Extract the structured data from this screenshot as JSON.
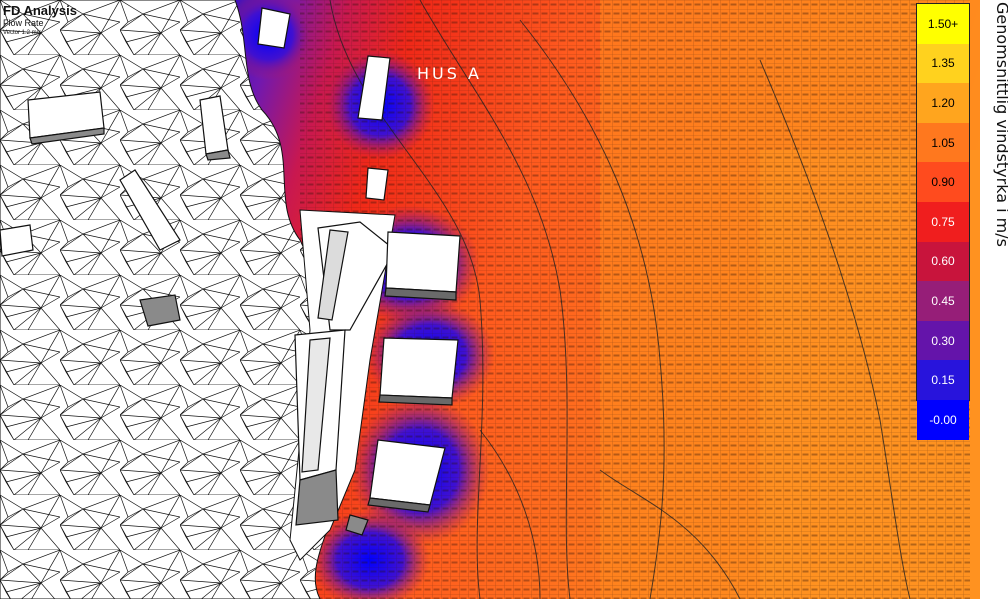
{
  "title": {
    "main": "FD Analysis",
    "sub": "Flow Rate",
    "small": "Vector 1.2 m/s"
  },
  "annotation": {
    "building_label": "HUS  A"
  },
  "legend": {
    "title": "Genomsnittlig vindstyrka i m/s",
    "items": [
      {
        "label": "1.50+",
        "color": "#ffff00",
        "text_color": "#000000"
      },
      {
        "label": "1.35",
        "color": "#ffd21e",
        "text_color": "#000000"
      },
      {
        "label": "1.20",
        "color": "#ffa51e",
        "text_color": "#000000"
      },
      {
        "label": "1.05",
        "color": "#ff781e",
        "text_color": "#000000"
      },
      {
        "label": "0.90",
        "color": "#ff4b1e",
        "text_color": "#000000"
      },
      {
        "label": "0.75",
        "color": "#f01e1e",
        "text_color": "#ffffff"
      },
      {
        "label": "0.60",
        "color": "#c8143c",
        "text_color": "#ffffff"
      },
      {
        "label": "0.45",
        "color": "#961e78",
        "text_color": "#ffffff"
      },
      {
        "label": "0.30",
        "color": "#6414aa",
        "text_color": "#ffffff"
      },
      {
        "label": "0.15",
        "color": "#2814dc",
        "text_color": "#ffffff"
      },
      {
        "label": "-0.00",
        "color": "#0000ff",
        "text_color": "#ffffff"
      }
    ]
  },
  "icons": {
    "buildings": "building-footprint-icon",
    "terrain": "terrain-mesh-icon"
  }
}
